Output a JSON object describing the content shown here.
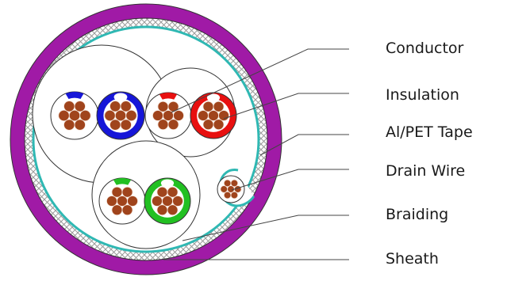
{
  "labels": {
    "conductor": "Conductor",
    "insulation": "Insulation",
    "tape": "Al/PET Tape",
    "drain_wire": "Drain Wire",
    "braiding": "Braiding",
    "sheath": "Sheath"
  },
  "colors": {
    "sheath": "#a01aa6",
    "braid_fill": "#ffffff",
    "braid_hatch": "#9a9a9a",
    "tape": "#2fb8b3",
    "copper": "#a0441c",
    "blue_insulation": "#1616d8",
    "red_insulation": "#e81010",
    "green_insulation": "#22c022",
    "outline": "#333333"
  }
}
